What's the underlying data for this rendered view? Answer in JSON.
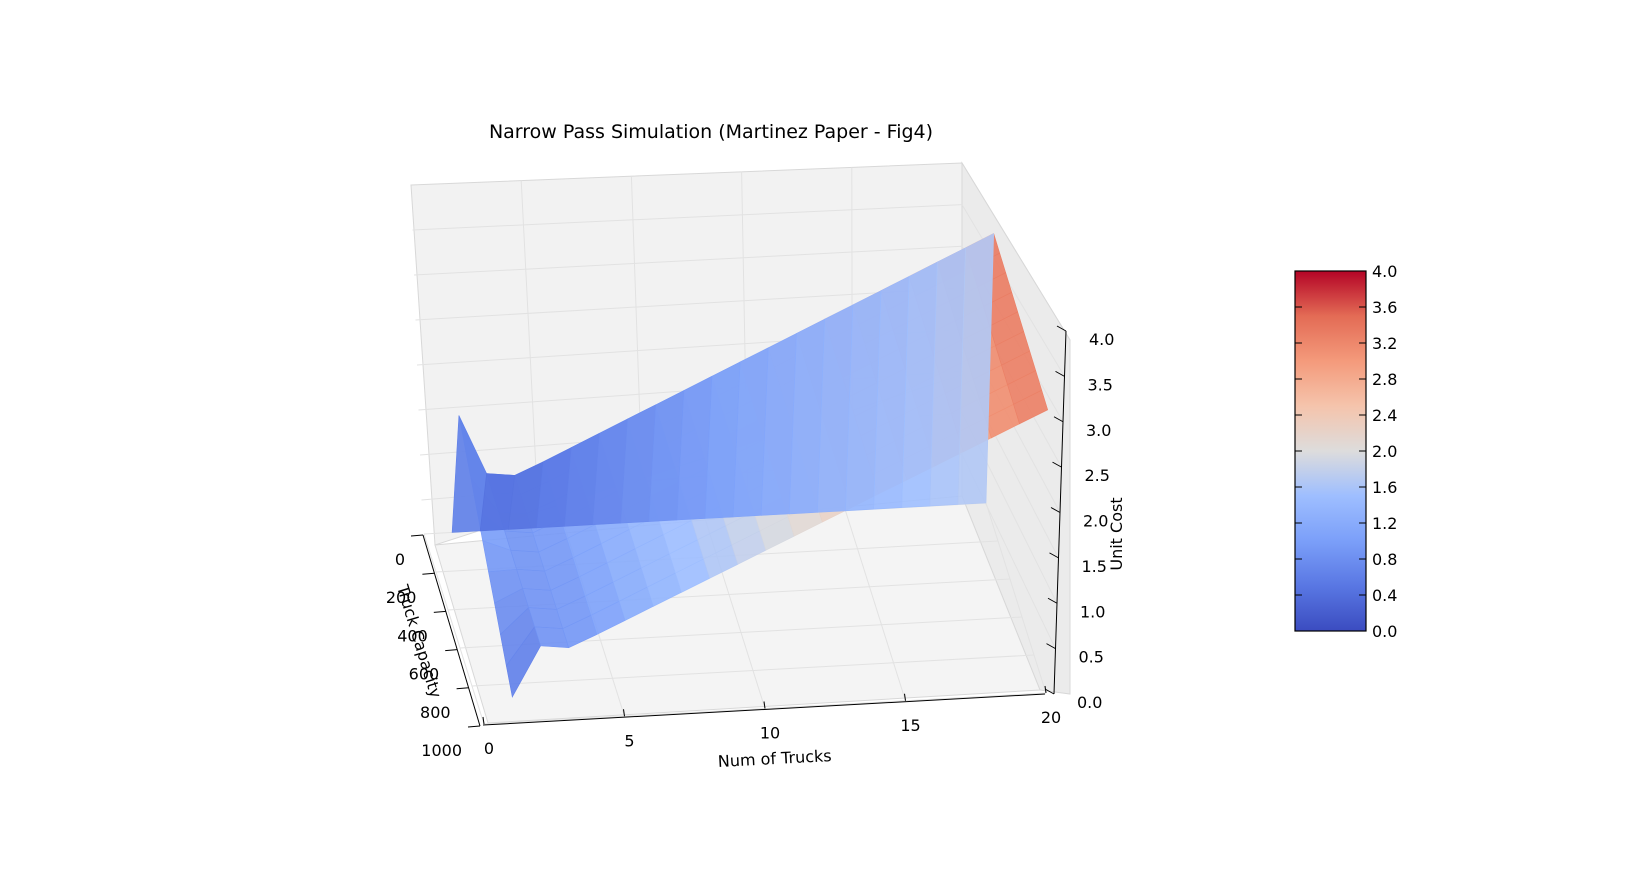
{
  "chart_data": {
    "type": "surface3d",
    "title": "Narrow Pass Simulation (Martinez Paper - Fig4)",
    "xlabel": "Num of Trucks",
    "ylabel": "Truck Capacity",
    "zlabel": "Unit Cost",
    "x_ticks": [
      "0",
      "5",
      "10",
      "15",
      "20"
    ],
    "y_ticks": [
      "0",
      "200",
      "400",
      "600",
      "800",
      "1000"
    ],
    "z_ticks": [
      "0.0",
      "0.5",
      "1.0",
      "1.5",
      "2.0",
      "2.5",
      "3.0",
      "3.5",
      "4.0"
    ],
    "xlim": [
      0,
      20
    ],
    "ylim": [
      0,
      1000
    ],
    "zlim": [
      0,
      4
    ],
    "num_trucks": [
      1,
      2,
      3,
      4,
      5,
      6,
      7,
      8,
      9,
      10,
      11,
      12,
      13,
      14,
      15,
      16,
      17,
      18,
      19,
      20
    ],
    "truck_capacity": [
      0,
      100,
      200,
      300,
      400,
      500,
      600,
      700,
      800,
      900,
      1000
    ],
    "unit_cost_peak": [
      1.62,
      0.9,
      0.86,
      1.0,
      1.15,
      1.3,
      1.45,
      1.6,
      1.75,
      1.9,
      2.05,
      2.2,
      2.35,
      2.5,
      2.65,
      2.8,
      2.95,
      3.1,
      3.25,
      3.4
    ],
    "colormap": "coolwarm",
    "colorbar": {
      "ticks": [
        "0.0",
        "0.4",
        "0.8",
        "1.2",
        "1.6",
        "2.0",
        "2.4",
        "2.8",
        "3.2",
        "3.6",
        "4.0"
      ],
      "range": [
        0,
        4
      ],
      "position": "right"
    },
    "grid": true,
    "colors": {
      "low": "#3b4cc0",
      "mid": "#dddcdc",
      "high": "#b40426",
      "pane": "#f2f2f2",
      "grid": "#e2e2e2"
    }
  }
}
